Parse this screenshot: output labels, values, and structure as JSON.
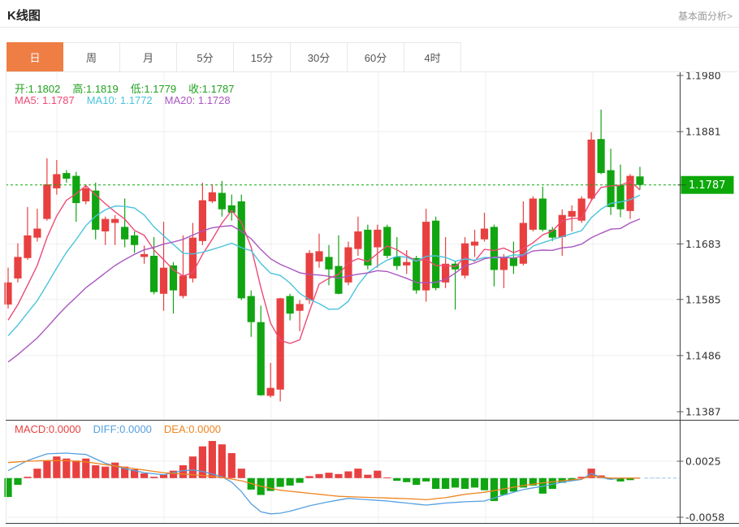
{
  "header": {
    "title": "K线图",
    "link_label": "基本面分析>"
  },
  "tabs": {
    "selected_index": 0,
    "items": [
      "日",
      "周",
      "月",
      "5分",
      "15分",
      "30分",
      "60分",
      "4时"
    ]
  },
  "price_legend": {
    "ohlc": [
      {
        "label": "开",
        "value": "1.1802"
      },
      {
        "label": "高",
        "value": "1.1819"
      },
      {
        "label": "低",
        "value": "1.1779"
      },
      {
        "label": "收",
        "value": "1.1787"
      }
    ],
    "ma": [
      {
        "label": "MA5",
        "value": "1.1787",
        "color": "#ef4976"
      },
      {
        "label": "MA10",
        "value": "1.1772",
        "color": "#4ac3dc"
      },
      {
        "label": "MA20",
        "value": "1.1728",
        "color": "#aa56c0"
      }
    ]
  },
  "macd_legend": [
    {
      "label": "MACD",
      "value": "0.0000",
      "color": "#e84040"
    },
    {
      "label": "DIFF",
      "value": "0.0000",
      "color": "#55a0e0"
    },
    {
      "label": "DEA",
      "value": "0.0000",
      "color": "#ef8521"
    }
  ],
  "colors": {
    "up": "#e84040",
    "down": "#11a511",
    "ma5": "#ef4976",
    "ma10": "#4ac3dc",
    "ma20": "#aa56c0",
    "diff": "#55a0e0",
    "dea": "#ef8521",
    "current_price": "#0ca80a",
    "tab_accent": "#ef7e45",
    "ohlc_text": "#21a21f",
    "grid": "#efefef",
    "axis": "#3c3c3c"
  },
  "chart_data": {
    "type": "candlestick",
    "title": "K线图 (daily K-line with MA5/MA10/MA20 overlays and MACD sub-panel)",
    "legend_position": "top-left inside plot",
    "grid": true,
    "price_axis": {
      "side": "right",
      "max": 1.198,
      "min": 1.1387,
      "ticks": [
        "1.1980",
        "1.1881",
        "1.1683",
        "1.1585",
        "1.1486",
        "1.1387"
      ],
      "current_price": "1.1787"
    },
    "macd_axis": {
      "side": "right",
      "max": 0.0025,
      "min": -0.0058,
      "ticks": [
        "0.0025",
        "-0.0058"
      ]
    },
    "ma_periods": [
      5,
      10,
      20
    ],
    "pre_closes": [
      1.14,
      1.1405,
      1.1412,
      1.1418,
      1.1425,
      1.1432,
      1.1438,
      1.1445,
      1.1452,
      1.1458,
      1.147,
      1.1482,
      1.1495,
      1.1505,
      1.1515,
      1.1522,
      1.1528,
      1.1535,
      1.1542
    ],
    "candles": [
      [
        1.1576,
        1.1641,
        1.1569,
        1.1615
      ],
      [
        1.1622,
        1.1684,
        1.1615,
        1.166
      ],
      [
        1.1658,
        1.1748,
        1.1655,
        1.1698
      ],
      [
        1.1694,
        1.1745,
        1.1687,
        1.171
      ],
      [
        1.1727,
        1.1834,
        1.1724,
        1.1788
      ],
      [
        1.1781,
        1.1831,
        1.177,
        1.1806
      ],
      [
        1.1808,
        1.1813,
        1.1791,
        1.1798
      ],
      [
        1.1803,
        1.181,
        1.1722,
        1.1755
      ],
      [
        1.1758,
        1.1788,
        1.1753,
        1.1781
      ],
      [
        1.1777,
        1.1791,
        1.1691,
        1.1708
      ],
      [
        1.1705,
        1.1731,
        1.1681,
        1.1727
      ],
      [
        1.172,
        1.1734,
        1.1681,
        1.1727
      ],
      [
        1.1713,
        1.1763,
        1.1677,
        1.1691
      ],
      [
        1.1698,
        1.1705,
        1.1667,
        1.1681
      ],
      [
        1.166,
        1.168,
        1.1648,
        1.1665
      ],
      [
        1.1662,
        1.1695,
        1.1594,
        1.1598
      ],
      [
        1.1595,
        1.1722,
        1.1565,
        1.1641
      ],
      [
        1.1645,
        1.1651,
        1.156,
        1.1601
      ],
      [
        1.1591,
        1.1698,
        1.1587,
        1.1627
      ],
      [
        1.1622,
        1.172,
        1.1615,
        1.1694
      ],
      [
        1.1688,
        1.1791,
        1.1681,
        1.176
      ],
      [
        1.1758,
        1.1788,
        1.1755,
        1.1774
      ],
      [
        1.1773,
        1.1794,
        1.1731,
        1.1744
      ],
      [
        1.1751,
        1.177,
        1.1724,
        1.1738
      ],
      [
        1.1758,
        1.177,
        1.1584,
        1.1587
      ],
      [
        1.1591,
        1.1601,
        1.1519,
        1.1545
      ],
      [
        1.1545,
        1.1574,
        1.1415,
        1.1416
      ],
      [
        1.1415,
        1.1473,
        1.1412,
        1.1429
      ],
      [
        1.1426,
        1.1588,
        1.1405,
        1.1587
      ],
      [
        1.1591,
        1.1595,
        1.1548,
        1.156
      ],
      [
        1.1565,
        1.1584,
        1.1529,
        1.1577
      ],
      [
        1.1584,
        1.1672,
        1.1577,
        1.1667
      ],
      [
        1.1652,
        1.1701,
        1.1641,
        1.167
      ],
      [
        1.166,
        1.1681,
        1.161,
        1.1638
      ],
      [
        1.1644,
        1.1698,
        1.1594,
        1.1595
      ],
      [
        1.1615,
        1.1687,
        1.161,
        1.1677
      ],
      [
        1.1674,
        1.1731,
        1.1662,
        1.1705
      ],
      [
        1.1708,
        1.1717,
        1.1638,
        1.1645
      ],
      [
        1.1677,
        1.1717,
        1.1641,
        1.1708
      ],
      [
        1.1713,
        1.1717,
        1.1658,
        1.1662
      ],
      [
        1.166,
        1.1695,
        1.1637,
        1.1644
      ],
      [
        1.1645,
        1.1672,
        1.163,
        1.1651
      ],
      [
        1.1658,
        1.1662,
        1.1595,
        1.1601
      ],
      [
        1.1601,
        1.1745,
        1.1581,
        1.1722
      ],
      [
        1.1724,
        1.1731,
        1.1601,
        1.1605
      ],
      [
        1.1615,
        1.1695,
        1.1605,
        1.1648
      ],
      [
        1.1648,
        1.1652,
        1.1567,
        1.1638
      ],
      [
        1.1627,
        1.1695,
        1.1622,
        1.1684
      ],
      [
        1.168,
        1.1708,
        1.166,
        1.1687
      ],
      [
        1.1691,
        1.1738,
        1.1687,
        1.171
      ],
      [
        1.1713,
        1.1717,
        1.1608,
        1.1637
      ],
      [
        1.1637,
        1.1665,
        1.1605,
        1.166
      ],
      [
        1.1658,
        1.1687,
        1.163,
        1.1644
      ],
      [
        1.1648,
        1.1758,
        1.1645,
        1.172
      ],
      [
        1.1708,
        1.1767,
        1.1705,
        1.1763
      ],
      [
        1.1763,
        1.1784,
        1.1705,
        1.1708
      ],
      [
        1.1708,
        1.1713,
        1.1688,
        1.1694
      ],
      [
        1.1695,
        1.1744,
        1.1662,
        1.1734
      ],
      [
        1.1731,
        1.1751,
        1.1705,
        1.1741
      ],
      [
        1.1724,
        1.1767,
        1.172,
        1.1763
      ],
      [
        1.1763,
        1.188,
        1.1758,
        1.1867
      ],
      [
        1.1868,
        1.192,
        1.1806,
        1.1808
      ],
      [
        1.1813,
        1.1851,
        1.1734,
        1.1748
      ],
      [
        1.1787,
        1.1823,
        1.173,
        1.1744
      ],
      [
        1.1741,
        1.1806,
        1.1727,
        1.1803
      ],
      [
        1.1802,
        1.1819,
        1.1779,
        1.1787
      ]
    ],
    "macd_hist": [
      -0.0028,
      -0.001,
      0.0002,
      0.0014,
      0.0026,
      0.0032,
      0.0029,
      0.0026,
      0.0029,
      0.0019,
      0.0017,
      0.0023,
      0.0017,
      0.0013,
      0.0007,
      0.0002,
      0.0005,
      0.0011,
      0.0019,
      0.0032,
      0.0047,
      0.0055,
      0.005,
      0.0037,
      0.0014,
      -0.0017,
      -0.0025,
      -0.0019,
      -0.0013,
      -0.0011,
      -0.0007,
      0.0003,
      0.0006,
      0.0008,
      0.0006,
      0.001,
      0.0014,
      0.0005,
      0.0011,
      0.0001,
      -0.0004,
      -0.0006,
      -0.001,
      -0.0005,
      -0.0016,
      -0.0016,
      -0.0014,
      -0.0016,
      -0.0014,
      -0.0018,
      -0.0034,
      -0.0025,
      -0.002,
      -0.0014,
      -0.0011,
      -0.0023,
      -0.0016,
      -0.0007,
      -0.0004,
      0.0002,
      0.0014,
      0.0004,
      -0.0002,
      -0.0005,
      -0.0003,
      0.0
    ],
    "diff_points": [
      [
        1,
        0.0011
      ],
      [
        3,
        0.0026
      ],
      [
        5,
        0.0036
      ],
      [
        7,
        0.0037
      ],
      [
        9,
        0.0035
      ],
      [
        11,
        0.0022
      ],
      [
        13,
        0.0014
      ],
      [
        15,
        0.0008
      ],
      [
        17,
        0.0005
      ],
      [
        19,
        0.0011
      ],
      [
        20,
        0.0012
      ],
      [
        21,
        0.001
      ],
      [
        22,
        0.0006
      ],
      [
        23,
        0.0002
      ],
      [
        24,
        -0.0006
      ],
      [
        25,
        -0.002
      ],
      [
        26,
        -0.0038
      ],
      [
        27,
        -0.005
      ],
      [
        28,
        -0.0053
      ],
      [
        29,
        -0.0052
      ],
      [
        30,
        -0.0049
      ],
      [
        32,
        -0.0041
      ],
      [
        34,
        -0.0035
      ],
      [
        36,
        -0.003
      ],
      [
        38,
        -0.0032
      ],
      [
        40,
        -0.0034
      ],
      [
        42,
        -0.0037
      ],
      [
        44,
        -0.004
      ],
      [
        46,
        -0.0037
      ],
      [
        48,
        -0.0035
      ],
      [
        50,
        -0.0034
      ],
      [
        52,
        -0.0025
      ],
      [
        54,
        -0.0017
      ],
      [
        56,
        -0.0012
      ],
      [
        58,
        -0.0006
      ],
      [
        60,
        -0.0002
      ],
      [
        61,
        0.0007
      ],
      [
        62,
        0.0001
      ],
      [
        63,
        -0.0002
      ],
      [
        64,
        0.0
      ],
      [
        66,
        0.0
      ]
    ],
    "dea_points": [
      [
        1,
        0.0023
      ],
      [
        3,
        0.0025
      ],
      [
        5,
        0.0026
      ],
      [
        7,
        0.0026
      ],
      [
        9,
        0.0024
      ],
      [
        11,
        0.002
      ],
      [
        13,
        0.0016
      ],
      [
        15,
        0.0012
      ],
      [
        17,
        0.0008
      ],
      [
        19,
        0.0006
      ],
      [
        21,
        0.0004
      ],
      [
        23,
        0.0001
      ],
      [
        25,
        -0.0004
      ],
      [
        27,
        -0.0012
      ],
      [
        29,
        -0.0018
      ],
      [
        31,
        -0.0021
      ],
      [
        33,
        -0.0024
      ],
      [
        35,
        -0.0027
      ],
      [
        37,
        -0.0028
      ],
      [
        39,
        -0.0029
      ],
      [
        41,
        -0.003
      ],
      [
        43,
        -0.0031
      ],
      [
        44,
        -0.0032
      ],
      [
        46,
        -0.0029
      ],
      [
        48,
        -0.0024
      ],
      [
        50,
        -0.0021
      ],
      [
        52,
        -0.0016
      ],
      [
        54,
        -0.0011
      ],
      [
        56,
        -0.0007
      ],
      [
        58,
        -0.0004
      ],
      [
        60,
        -0.0001
      ],
      [
        61,
        0.0003
      ],
      [
        63,
        0.0
      ],
      [
        66,
        0.0
      ]
    ]
  }
}
